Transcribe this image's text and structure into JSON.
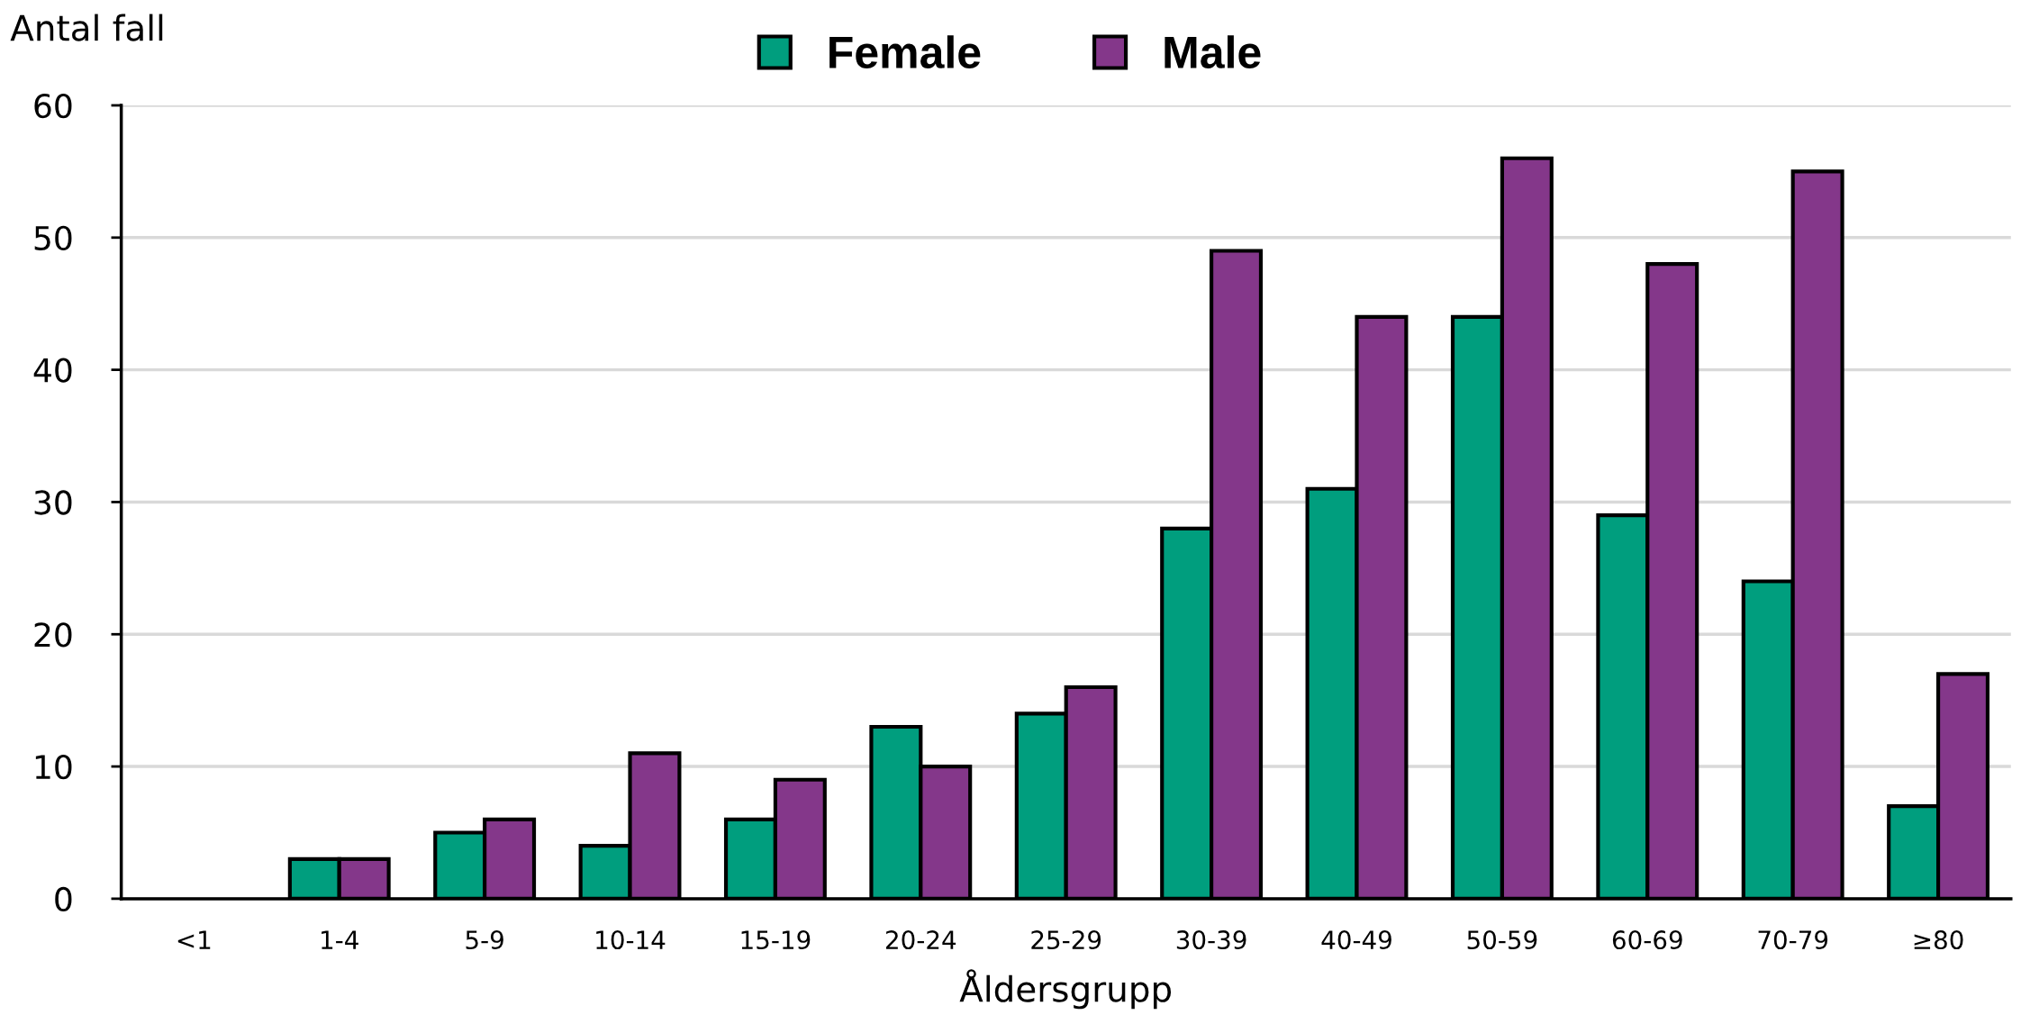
{
  "chart_data": {
    "type": "bar",
    "ylabel": "Antal fall",
    "xlabel": "Åldersgrupp",
    "categories": [
      "<1",
      "1-4",
      "5-9",
      "10-14",
      "15-19",
      "20-24",
      "25-29",
      "30-39",
      "40-49",
      "50-59",
      "60-69",
      "70-79",
      "≥80"
    ],
    "series": [
      {
        "name": "Female",
        "color": "#009e7e",
        "values": [
          null,
          3,
          5,
          4,
          6,
          13,
          14,
          28,
          31,
          44,
          29,
          24,
          7
        ]
      },
      {
        "name": "Male",
        "color": "#84378a",
        "values": [
          null,
          3,
          6,
          11,
          9,
          10,
          16,
          49,
          44,
          56,
          48,
          55,
          17
        ]
      }
    ],
    "ylim": [
      0,
      60
    ],
    "yticks": [
      0,
      10,
      20,
      30,
      40,
      50,
      60
    ],
    "grid": "y",
    "legend": "top"
  }
}
